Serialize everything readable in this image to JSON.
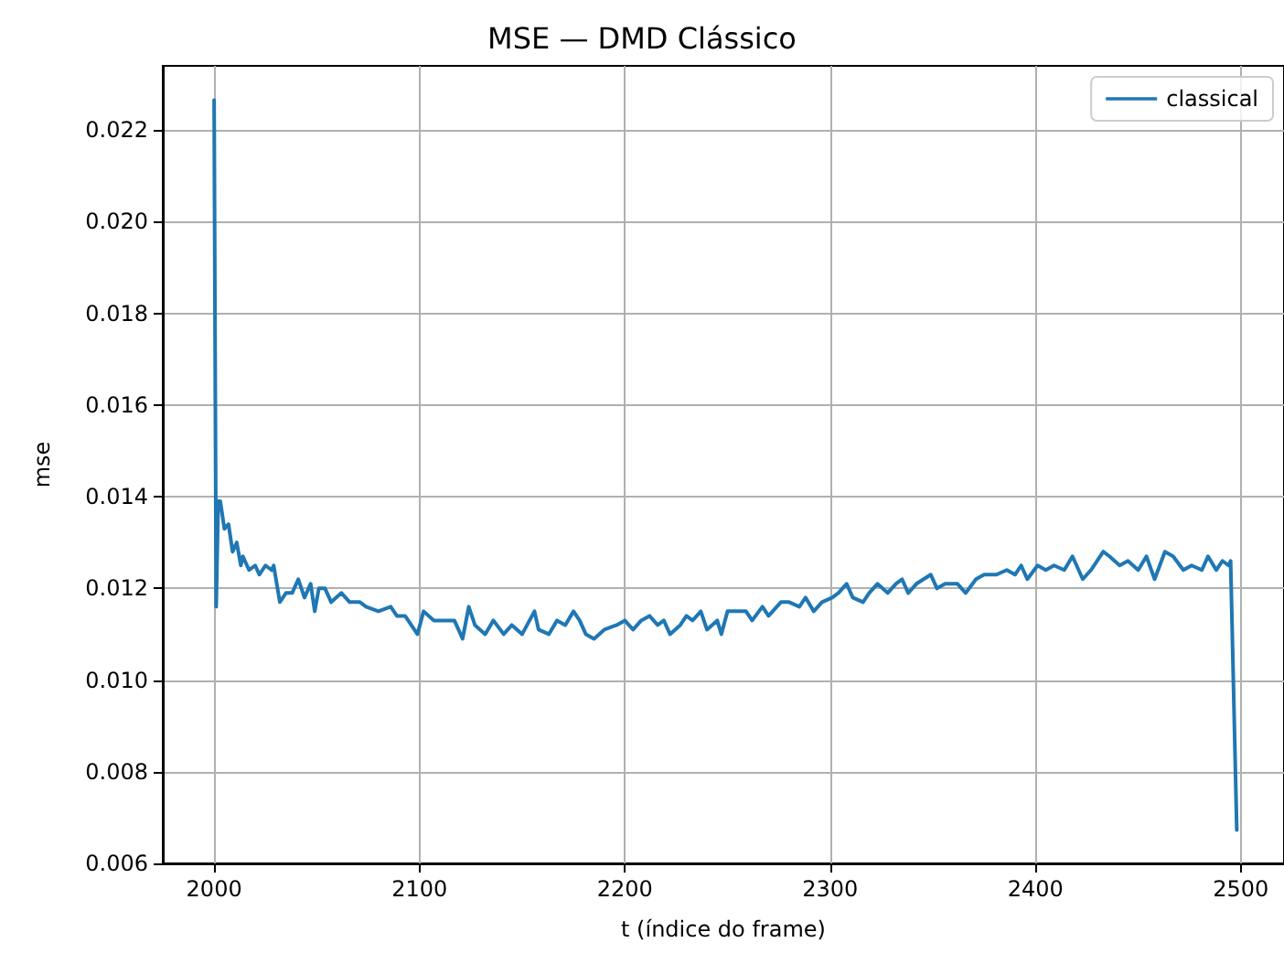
{
  "chart_data": {
    "type": "line",
    "title": "MSE — DMD Clássico",
    "xlabel": "t (índice do frame)",
    "ylabel": "mse",
    "xlim": [
      1975,
      2521
    ],
    "xticks": [
      2000,
      2100,
      2200,
      2300,
      2400,
      2500
    ],
    "ylim": [
      0.006,
      0.0234
    ],
    "yticks": [
      0.006,
      0.008,
      {
        "value": 0.01,
        "label": "0.010"
      },
      0.012,
      0.014,
      0.016,
      0.018,
      {
        "value": 0.02,
        "label": "0.020"
      },
      0.022
    ],
    "grid": true,
    "legend": "top right",
    "marker": "none",
    "line_style": "solid",
    "series": [
      {
        "name": "classical",
        "color": "#1f77b4",
        "x": [
          2000,
          2001,
          2002,
          2003,
          2005,
          2007,
          2009,
          2011,
          2013,
          2014,
          2017,
          2020,
          2022,
          2025,
          2028,
          2029,
          2032,
          2035,
          2038,
          2041,
          2044,
          2047,
          2049,
          2051,
          2054,
          2057,
          2062,
          2066,
          2071,
          2074,
          2080,
          2086,
          2089,
          2093,
          2099,
          2102,
          2107,
          2113,
          2117,
          2121,
          2124,
          2127,
          2132,
          2136,
          2141,
          2145,
          2150,
          2156,
          2158,
          2163,
          2167,
          2171,
          2175,
          2178,
          2181,
          2185,
          2190,
          2196,
          2200,
          2204,
          2208,
          2212,
          2216,
          2219,
          2222,
          2227,
          2230,
          2233,
          2237,
          2240,
          2245,
          2247,
          2250,
          2255,
          2259,
          2262,
          2267,
          2270,
          2276,
          2280,
          2285,
          2288,
          2292,
          2296,
          2301,
          2304,
          2308,
          2311,
          2316,
          2319,
          2323,
          2328,
          2332,
          2335,
          2338,
          2342,
          2349,
          2352,
          2356,
          2362,
          2366,
          2371,
          2375,
          2381,
          2386,
          2390,
          2393,
          2396,
          2401,
          2405,
          2409,
          2414,
          2418,
          2423,
          2427,
          2433,
          2436,
          2441,
          2445,
          2450,
          2454,
          2458,
          2463,
          2467,
          2472,
          2476,
          2481,
          2484,
          2488,
          2491,
          2494,
          2495,
          2498
        ],
        "values": [
          0.02265,
          0.0116,
          0.0139,
          0.0139,
          0.0133,
          0.0134,
          0.0128,
          0.013,
          0.0125,
          0.0127,
          0.0124,
          0.0125,
          0.0123,
          0.0125,
          0.0124,
          0.0125,
          0.0117,
          0.0119,
          0.0119,
          0.0122,
          0.0118,
          0.0121,
          0.0115,
          0.012,
          0.012,
          0.0117,
          0.0119,
          0.0117,
          0.0117,
          0.0116,
          0.0115,
          0.0116,
          0.0114,
          0.0114,
          0.011,
          0.0115,
          0.0113,
          0.0113,
          0.0113,
          0.0109,
          0.0116,
          0.0112,
          0.011,
          0.0113,
          0.011,
          0.0112,
          0.011,
          0.0115,
          0.0111,
          0.011,
          0.0113,
          0.0112,
          0.0115,
          0.0113,
          0.011,
          0.0109,
          0.0111,
          0.0112,
          0.0113,
          0.0111,
          0.0113,
          0.0114,
          0.0112,
          0.0113,
          0.011,
          0.0112,
          0.0114,
          0.0113,
          0.0115,
          0.0111,
          0.0113,
          0.011,
          0.0115,
          0.0115,
          0.0115,
          0.0113,
          0.0116,
          0.0114,
          0.0117,
          0.0117,
          0.0116,
          0.0118,
          0.0115,
          0.0117,
          0.0118,
          0.0119,
          0.0121,
          0.0118,
          0.0117,
          0.0119,
          0.0121,
          0.0119,
          0.0121,
          0.0122,
          0.0119,
          0.0121,
          0.0123,
          0.012,
          0.0121,
          0.0121,
          0.0119,
          0.0122,
          0.0123,
          0.0123,
          0.0124,
          0.0123,
          0.0125,
          0.0122,
          0.0125,
          0.0124,
          0.0125,
          0.0124,
          0.0127,
          0.0122,
          0.0124,
          0.0128,
          0.0127,
          0.0125,
          0.0126,
          0.0124,
          0.0127,
          0.0122,
          0.0128,
          0.0127,
          0.0124,
          0.0125,
          0.0124,
          0.0127,
          0.0124,
          0.0126,
          0.0125,
          0.0126,
          0.00673
        ]
      }
    ]
  }
}
